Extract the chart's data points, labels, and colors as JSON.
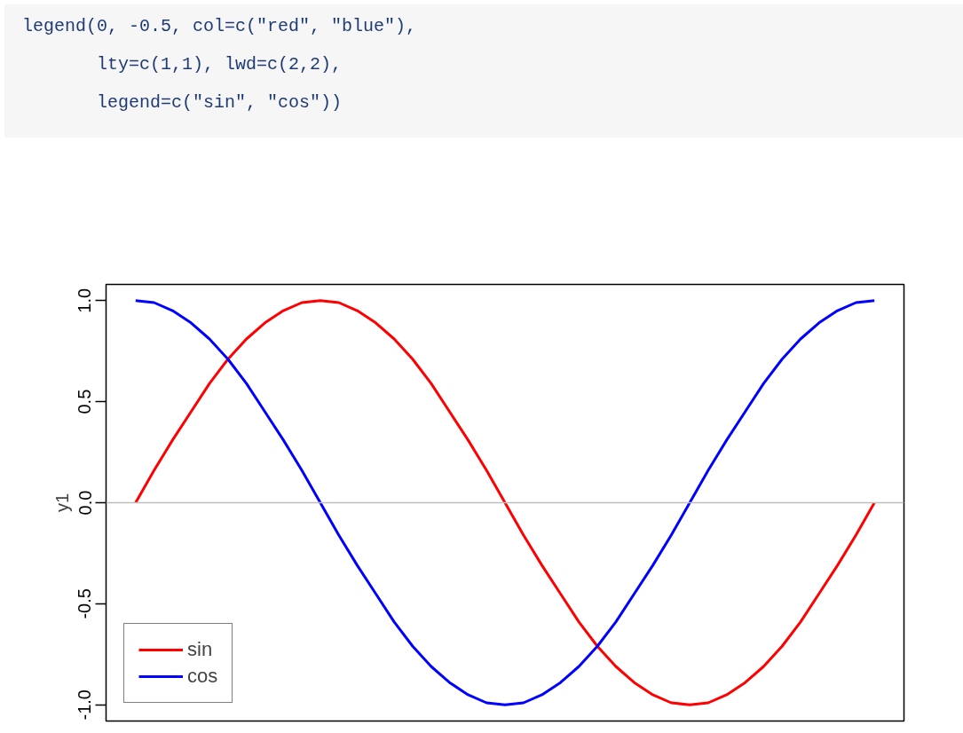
{
  "chart_data": {
    "type": "line",
    "annotations": [
      "legend(0, -0.5, col=c(\"red\", \"blue\"),",
      "       lty=c(1,1), lwd=c(2,2),",
      "       legend=c(\"sin\", \"cos\"))"
    ],
    "ylabel": "y1",
    "categories": [
      null,
      null,
      null,
      null,
      null,
      null,
      null,
      null,
      null,
      null,
      null,
      null,
      null,
      null,
      null,
      null,
      null,
      null,
      null,
      null,
      null,
      null,
      null,
      null,
      null,
      null,
      null,
      null,
      null,
      null,
      null,
      null,
      null,
      null,
      null,
      null,
      null,
      null,
      null,
      null,
      null
    ],
    "series": [
      {
        "name": "sin",
        "color": "#ff0000",
        "values": [
          0,
          0.16,
          0.31,
          0.45,
          0.59,
          0.71,
          0.81,
          0.89,
          0.95,
          0.99,
          1,
          0.99,
          0.95,
          0.89,
          0.81,
          0.71,
          0.59,
          0.45,
          0.31,
          0.16,
          0,
          -0.16,
          -0.31,
          -0.45,
          -0.59,
          -0.71,
          -0.81,
          -0.89,
          -0.95,
          -0.99,
          -1,
          -0.99,
          -0.95,
          -0.89,
          -0.81,
          -0.71,
          -0.59,
          -0.45,
          -0.31,
          -0.16,
          0
        ]
      },
      {
        "name": "cos",
        "color": "#0000ff",
        "values": [
          1,
          0.99,
          0.95,
          0.89,
          0.81,
          0.71,
          0.59,
          0.45,
          0.31,
          0.16,
          0,
          -0.16,
          -0.31,
          -0.45,
          -0.59,
          -0.71,
          -0.81,
          -0.89,
          -0.95,
          -0.99,
          -1,
          -0.99,
          -0.95,
          -0.89,
          -0.81,
          -0.71,
          -0.59,
          -0.45,
          -0.31,
          -0.16,
          0,
          0.16,
          0.31,
          0.45,
          0.59,
          0.71,
          0.81,
          0.89,
          0.95,
          0.99,
          1
        ]
      }
    ],
    "ylim": [
      -1.08,
      1.08
    ],
    "yticks": [
      {
        "value": -1,
        "label": "-1.0"
      },
      {
        "value": -0.5,
        "label": "-0.5"
      },
      {
        "value": 0,
        "label": "0.0"
      },
      {
        "value": 0.5,
        "label": "0.5"
      },
      {
        "value": 1,
        "label": "1.0"
      }
    ],
    "tick_labels": "y",
    "ref_lines": [
      {
        "axis": "y",
        "value": 0,
        "label": null,
        "color": "#bebebe"
      }
    ],
    "legend": "bottom left",
    "grid": false,
    "line_style": "solid",
    "marker": "none"
  }
}
